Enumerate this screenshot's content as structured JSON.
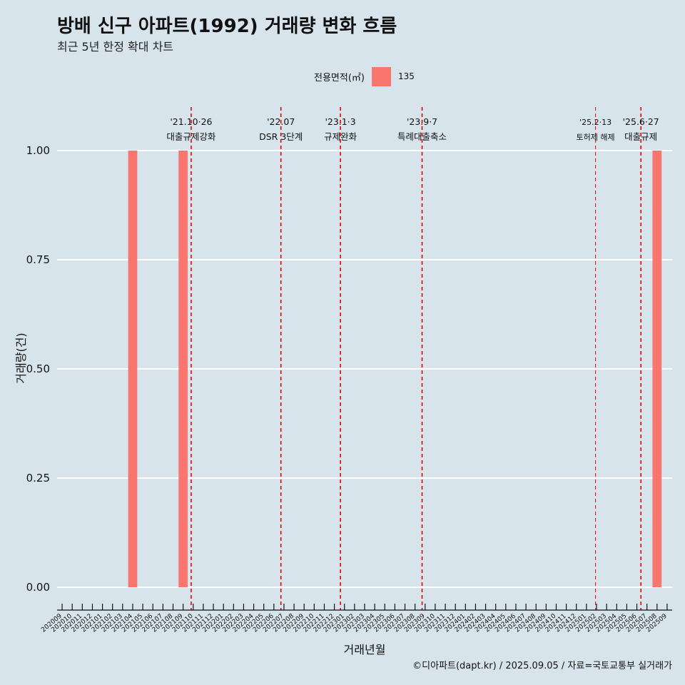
{
  "chart_data": {
    "type": "bar",
    "title": "방배 신구 아파트(1992) 거래량 변화 흐름",
    "subtitle": "최근 5년 한정 확대 차트",
    "xlabel": "거래년월",
    "ylabel": "거래량(건)",
    "caption": "©디아파트(dapt.kr) / 2025.09.05 / 자료=국토교통부 실거래가",
    "legend_title": "전용면적(㎡)",
    "legend_position": "top",
    "colors": {
      "bar": "#f8766d",
      "vline": "#ee0000",
      "background": "#d7e4ec",
      "grid": "#ffffff"
    },
    "ylim": [
      0,
      1
    ],
    "yticks": [
      0,
      0.25,
      0.5,
      0.75,
      1
    ],
    "ytick_labels": [
      "0.00",
      "0.25",
      "0.50",
      "0.75",
      "1.00"
    ],
    "categories": [
      "202009",
      "202010",
      "202011",
      "202012",
      "202101",
      "202102",
      "202103",
      "202104",
      "202105",
      "202106",
      "202107",
      "202108",
      "202109",
      "202110",
      "202111",
      "202112",
      "202201",
      "202202",
      "202203",
      "202204",
      "202205",
      "202206",
      "202207",
      "202208",
      "202209",
      "202210",
      "202211",
      "202212",
      "202301",
      "202302",
      "202303",
      "202304",
      "202305",
      "202306",
      "202307",
      "202308",
      "202309",
      "202310",
      "202311",
      "202312",
      "202401",
      "202402",
      "202403",
      "202404",
      "202405",
      "202406",
      "202407",
      "202408",
      "202409",
      "202410",
      "202411",
      "202412",
      "202501",
      "202502",
      "202503",
      "202504",
      "202505",
      "202506",
      "202507",
      "202508",
      "202509"
    ],
    "series": [
      {
        "name": "135",
        "values": [
          0,
          0,
          0,
          0,
          0,
          0,
          0,
          1,
          0,
          0,
          0,
          0,
          1,
          0,
          0,
          0,
          0,
          0,
          0,
          0,
          0,
          0,
          0,
          0,
          0,
          0,
          0,
          0,
          0,
          0,
          0,
          0,
          0,
          0,
          0,
          0,
          0,
          0,
          0,
          0,
          0,
          0,
          0,
          0,
          0,
          0,
          0,
          0,
          0,
          0,
          0,
          0,
          0,
          0,
          0,
          0,
          0,
          0,
          0,
          1,
          0
        ]
      }
    ],
    "annotations": [
      {
        "x": "202110",
        "offset": 0.3,
        "date": "'21.10·26",
        "text": "대출규제강화",
        "style": "bold"
      },
      {
        "x": "202207",
        "offset": 0.2,
        "date": "'22.07",
        "text": "DSR 3단계",
        "style": "bold"
      },
      {
        "x": "202301",
        "offset": 0.1,
        "date": "'23.1·3",
        "text": "규제완화",
        "style": "bold"
      },
      {
        "x": "202309",
        "offset": 0.2,
        "date": "'23.9·7",
        "text": "특례대출축소",
        "style": "bold"
      },
      {
        "x": "202502",
        "offset": 0.4,
        "date": "'25.2·13",
        "text": "토허제 해제",
        "style": "thin"
      },
      {
        "x": "202506",
        "offset": 0.9,
        "date": "'25.6·27",
        "text": "대출규제",
        "style": "bold"
      }
    ]
  }
}
